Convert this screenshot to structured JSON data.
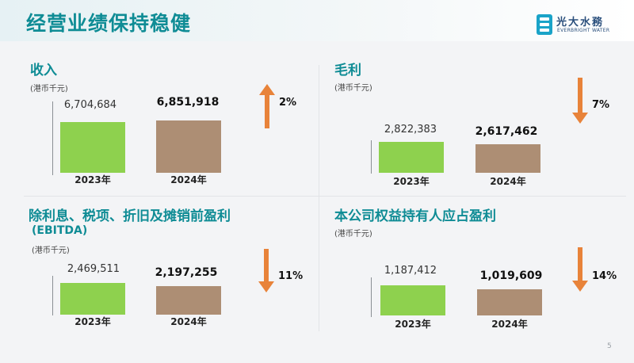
{
  "header": {
    "title": "经营业绩保持稳健",
    "logo_cn": "光大水務",
    "logo_en": "EVERBRIGHT WATER"
  },
  "page_number": "5",
  "chart_data": [
    {
      "type": "bar",
      "title": "收入",
      "unit": "(港币千元)",
      "categories": [
        "2023年",
        "2024年"
      ],
      "values": [
        6704684,
        6851918
      ],
      "value_labels": [
        "6,704,684",
        "6,851,918"
      ],
      "change": {
        "direction": "up",
        "label": "2%"
      },
      "colors": [
        "#8ed14e",
        "#ad8e74"
      ]
    },
    {
      "type": "bar",
      "title": "毛利",
      "unit": "(港币千元)",
      "categories": [
        "2023年",
        "2024年"
      ],
      "values": [
        2822383,
        2617462
      ],
      "value_labels": [
        "2,822,383",
        "2,617,462"
      ],
      "change": {
        "direction": "down",
        "label": "7%"
      },
      "colors": [
        "#8ed14e",
        "#ad8e74"
      ]
    },
    {
      "type": "bar",
      "title": "除利息、税项、折旧及摊销前盈利",
      "subtitle": "(EBITDA)",
      "unit": "(港币千元)",
      "categories": [
        "2023年",
        "2024年"
      ],
      "values": [
        2469511,
        2197255
      ],
      "value_labels": [
        "2,469,511",
        "2,197,255"
      ],
      "change": {
        "direction": "down",
        "label": "11%"
      },
      "colors": [
        "#8ed14e",
        "#ad8e74"
      ]
    },
    {
      "type": "bar",
      "title": "本公司权益持有人应占盈利",
      "unit": "(港币千元)",
      "categories": [
        "2023年",
        "2024年"
      ],
      "values": [
        1187412,
        1019609
      ],
      "value_labels": [
        "1,187,412",
        "1,019,609"
      ],
      "change": {
        "direction": "down",
        "label": "14%"
      },
      "colors": [
        "#8ed14e",
        "#ad8e74"
      ]
    }
  ],
  "colors": {
    "accent": "#0f8c95",
    "arrow": "#e8833a"
  }
}
